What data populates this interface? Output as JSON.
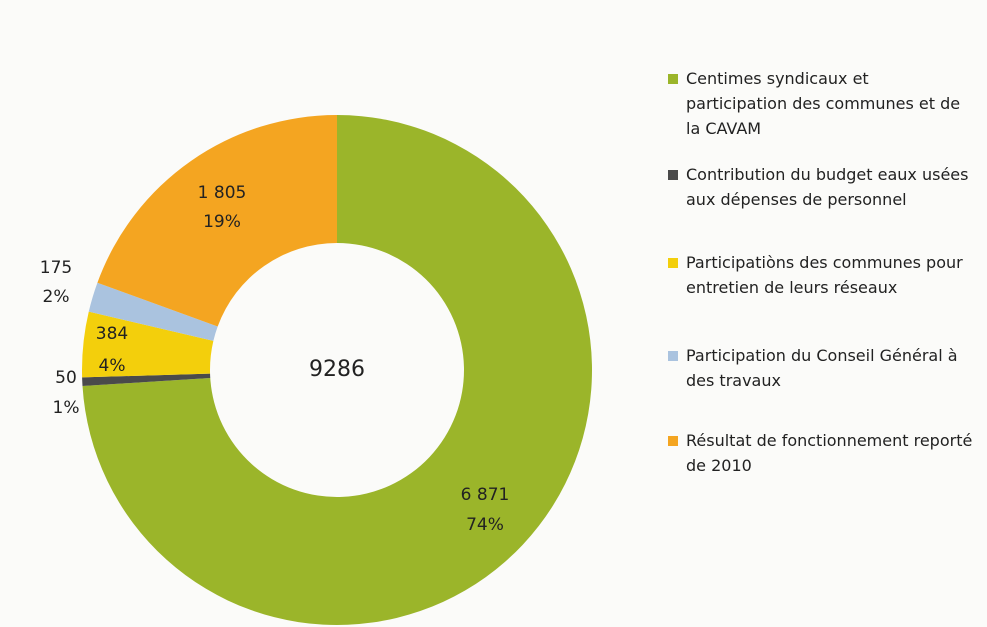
{
  "chart_data": {
    "type": "donut",
    "center_label": "9286",
    "series": [
      {
        "name": "Centimes syndicaux et participation des communes et de la CAVAM",
        "color": "#9bb52a",
        "values": [
          6871
        ],
        "value_labels": [
          "6 871"
        ],
        "percent_labels": [
          "74%"
        ]
      },
      {
        "name": "Contribution du budget eaux usées aux dépenses de personnel",
        "color": "#4a4a4a",
        "values": [
          50
        ],
        "value_labels": [
          "50"
        ],
        "percent_labels": [
          "1%"
        ]
      },
      {
        "name": "Participatiòns des communes pour entretien de leurs réseaux",
        "color": "#f3cf0c",
        "values": [
          384
        ],
        "value_labels": [
          "384"
        ],
        "percent_labels": [
          "4%"
        ]
      },
      {
        "name": "Participation du Conseil Général à des travaux",
        "color": "#aac3df",
        "values": [
          175
        ],
        "value_labels": [
          "175"
        ],
        "percent_labels": [
          "2%"
        ]
      },
      {
        "name": "Résultat de fonctionnement reporté de 2010",
        "color": "#f4a521",
        "values": [
          1805
        ],
        "value_labels": [
          "1 805"
        ],
        "percent_labels": [
          "19%"
        ]
      }
    ],
    "legend": "right"
  }
}
